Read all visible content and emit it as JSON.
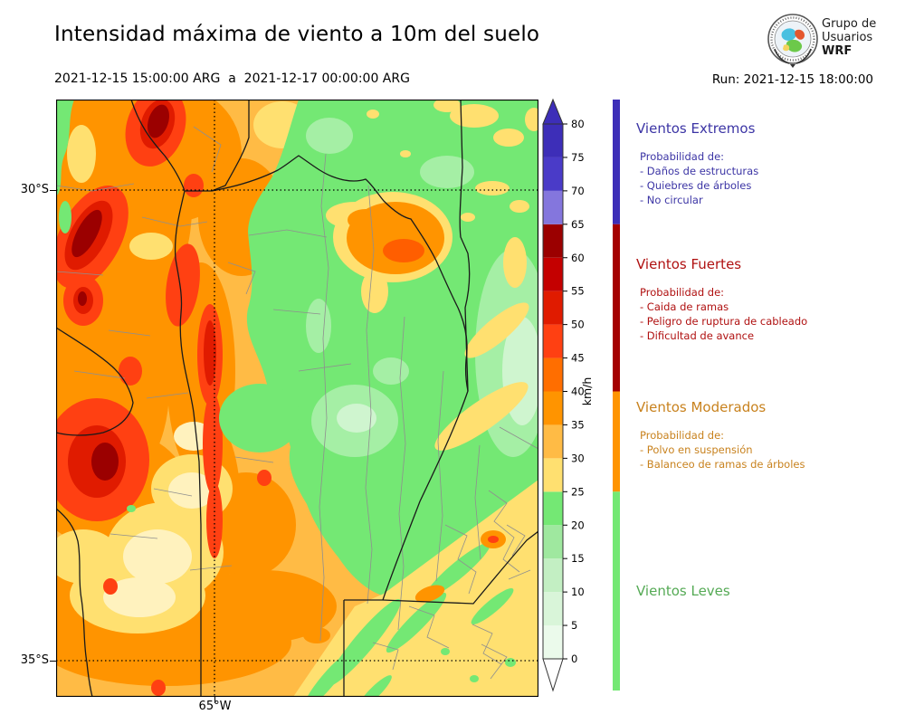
{
  "header": {
    "title": "Intensidad máxima de viento a 10m del suelo",
    "date_range": "2021-12-15 15:00:00 ARG  a  2021-12-17 00:00:00 ARG",
    "run_label": "Run: 2021-12-15 18:00:00",
    "logo": {
      "line1": "Grupo de",
      "line2": "Usuarios",
      "line3": "WRF"
    }
  },
  "map": {
    "lat_top_label": "30°S",
    "lat_bottom_label": "35°S",
    "lon_label": "65°W"
  },
  "colorbar": {
    "unit": "km/h",
    "ticks": [
      0,
      5,
      10,
      15,
      20,
      25,
      30,
      35,
      40,
      45,
      50,
      55,
      60,
      65,
      70,
      75,
      80
    ],
    "over_color": "#3D2EB8",
    "under_color": "#FFFFFF",
    "segments": [
      {
        "from": 0,
        "to": 5,
        "color": "#EBFAEB"
      },
      {
        "from": 5,
        "to": 10,
        "color": "#D9F5D9"
      },
      {
        "from": 10,
        "to": 15,
        "color": "#C3EFC3"
      },
      {
        "from": 15,
        "to": 20,
        "color": "#9FE89F"
      },
      {
        "from": 20,
        "to": 25,
        "color": "#74E874"
      },
      {
        "from": 25,
        "to": 30,
        "color": "#FFE070"
      },
      {
        "from": 30,
        "to": 35,
        "color": "#FFBB45"
      },
      {
        "from": 35,
        "to": 40,
        "color": "#FF9400"
      },
      {
        "from": 40,
        "to": 45,
        "color": "#FF6E00"
      },
      {
        "from": 45,
        "to": 50,
        "color": "#FF4012"
      },
      {
        "from": 50,
        "to": 55,
        "color": "#E01B00"
      },
      {
        "from": 55,
        "to": 60,
        "color": "#C40000"
      },
      {
        "from": 60,
        "to": 65,
        "color": "#9B0000"
      },
      {
        "from": 65,
        "to": 70,
        "color": "#8476DD"
      },
      {
        "from": 70,
        "to": 75,
        "color": "#4A3BC8"
      },
      {
        "from": 75,
        "to": 80,
        "color": "#3D2EB8"
      }
    ]
  },
  "categories": [
    {
      "name": "Vientos Extremos",
      "text_color": "#3C35A5",
      "bar_color": "#3D2EB8",
      "range": [
        65,
        85
      ],
      "prob_label": "Probabilidad de:",
      "items": [
        "- Daños de estructuras",
        "- Quiebres de árboles",
        "- No circular"
      ]
    },
    {
      "name": "Vientos Fuertes",
      "text_color": "#B01111",
      "bar_color": "#A50000",
      "range": [
        40,
        65
      ],
      "prob_label": "Probabilidad de:",
      "items": [
        "- Caida de ramas",
        "- Peligro de ruptura de cableado",
        "- Dificultad de avance"
      ]
    },
    {
      "name": "Vientos Moderados",
      "text_color": "#C8821E",
      "bar_color": "#FF9400",
      "range": [
        25,
        40
      ],
      "prob_label": "Probabilidad de:",
      "items": [
        "- Polvo en suspensión",
        "- Balanceo de ramas de árboles"
      ]
    },
    {
      "name": "Vientos Leves",
      "text_color": "#55AA55",
      "bar_color": "#74E874",
      "range": [
        0,
        25
      ],
      "prob_label": "",
      "items": []
    }
  ],
  "chart_data": {
    "type": "heatmap",
    "title": "Intensidad máxima de viento a 10m del suelo",
    "period": "2021-12-15 15:00:00 ARG a 2021-12-17 00:00:00 ARG",
    "model_run": "2021-12-15 18:00:00",
    "unit": "km/h",
    "scale_ticks": [
      0,
      5,
      10,
      15,
      20,
      25,
      30,
      35,
      40,
      45,
      50,
      55,
      60,
      65,
      70,
      75,
      80
    ],
    "grid_lines": {
      "latitudes": [
        "30°S",
        "35°S"
      ],
      "longitude": "65°W"
    },
    "categories": [
      {
        "label": "Vientos Extremos",
        "range_kmh": [
          65,
          85
        ]
      },
      {
        "label": "Vientos Fuertes",
        "range_kmh": [
          40,
          65
        ]
      },
      {
        "label": "Vientos Moderados",
        "range_kmh": [
          25,
          40
        ]
      },
      {
        "label": "Vientos Leves",
        "range_kmh": [
          0,
          25
        ]
      }
    ],
    "spatial_summary": "Vientos fuertes (rojos, 40-65 km/h) sobre el oeste serrano/precordillera; moderados (naranja-amarillo, 25-40) en el centro y sur; leves (verde, 0-25) en el este; núcleo moderado aislado al noreste"
  }
}
